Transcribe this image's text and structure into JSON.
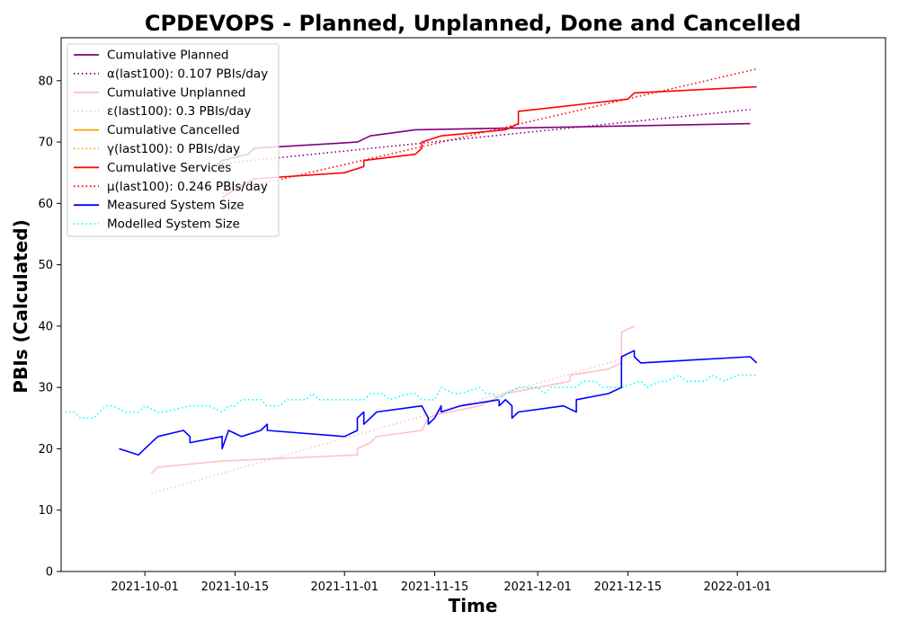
{
  "chart_data": {
    "type": "line",
    "title": "CPDEVOPS - Planned, Unplanned, Done  and Cancelled",
    "xlabel": "Time",
    "ylabel": "PBIs (Calculated)",
    "x_type": "date",
    "xlim": [
      "2021-09-18",
      "2022-01-24"
    ],
    "ylim": [
      0,
      87
    ],
    "x_ticks": [
      "2021-10-01",
      "2021-10-15",
      "2021-11-01",
      "2021-11-15",
      "2021-12-01",
      "2021-12-15",
      "2022-01-01"
    ],
    "y_ticks": [
      0,
      10,
      20,
      30,
      40,
      50,
      60,
      70,
      80
    ],
    "grid": false,
    "legend_position": "top-left",
    "series": [
      {
        "name": "Cumulative Planned",
        "color": "#800080",
        "style": "solid",
        "x": [
          "2021-10-12",
          "2021-10-13",
          "2021-10-15",
          "2021-10-17",
          "2021-10-18",
          "2021-11-03",
          "2021-11-04",
          "2021-11-05",
          "2021-11-12",
          "2021-11-28",
          "2022-01-03"
        ],
        "y": [
          66,
          67,
          67.5,
          68,
          69,
          70,
          70.5,
          71,
          72,
          72.3,
          73
        ]
      },
      {
        "name": "α(last100): 0.107 PBIs/day",
        "color": "#800080",
        "style": "dotted",
        "x": [
          "2021-10-13",
          "2022-01-03"
        ],
        "y": [
          66.5,
          75.3
        ]
      },
      {
        "name": "Cumulative Unplanned",
        "color": "#ffc0cb",
        "style": "solid",
        "x": [
          "2021-10-02",
          "2021-10-03",
          "2021-10-13",
          "2021-11-03",
          "2021-11-03",
          "2021-11-05",
          "2021-11-06",
          "2021-11-13",
          "2021-11-14",
          "2021-11-15",
          "2021-11-22",
          "2021-11-26",
          "2021-12-06",
          "2021-12-06",
          "2021-12-12",
          "2021-12-14",
          "2021-12-14",
          "2021-12-16"
        ],
        "y": [
          16,
          17,
          18,
          19,
          20,
          21,
          22,
          23,
          25,
          25.5,
          27,
          29,
          31,
          32,
          33,
          34,
          39,
          40
        ]
      },
      {
        "name": "ε(last100): 0.3 PBIs/day",
        "color": "#ffc0cb",
        "style": "dotted",
        "x": [
          "2021-10-02",
          "2021-12-16"
        ],
        "y": [
          12.7,
          35.2
        ]
      },
      {
        "name": "Cumulative Cancelled",
        "color": "#ffa500",
        "style": "solid",
        "x": [],
        "y": []
      },
      {
        "name": "γ(last100): 0 PBIs/day",
        "color": "#ffa500",
        "style": "dotted",
        "x": [],
        "y": []
      },
      {
        "name": "Cumulative Services",
        "color": "#ff0000",
        "style": "solid",
        "x": [
          "2021-10-13",
          "2021-10-18",
          "2021-11-01",
          "2021-11-04",
          "2021-11-04",
          "2021-11-12",
          "2021-11-13",
          "2021-11-13",
          "2021-11-16",
          "2021-11-26",
          "2021-11-27",
          "2021-11-28",
          "2021-11-28",
          "2021-12-15",
          "2021-12-16",
          "2022-01-04"
        ],
        "y": [
          61,
          64,
          65,
          66,
          67,
          68,
          69,
          70,
          71,
          72,
          72.5,
          73,
          75,
          77,
          78,
          79
        ]
      },
      {
        "name": "μ(last100): 0.246 PBIs/day",
        "color": "#ff0000",
        "style": "dotted",
        "x": [
          "2021-10-13",
          "2022-01-04"
        ],
        "y": [
          61.7,
          81.9
        ]
      },
      {
        "name": "Measured System Size",
        "color": "#0000ff",
        "style": "solid",
        "x": [
          "2021-09-27",
          "2021-09-30",
          "2021-10-01",
          "2021-10-03",
          "2021-10-07",
          "2021-10-08",
          "2021-10-08",
          "2021-10-13",
          "2021-10-13",
          "2021-10-14",
          "2021-10-14",
          "2021-10-15",
          "2021-10-16",
          "2021-10-19",
          "2021-10-20",
          "2021-10-20",
          "2021-11-01",
          "2021-11-03",
          "2021-11-03",
          "2021-11-04",
          "2021-11-04",
          "2021-11-05",
          "2021-11-06",
          "2021-11-13",
          "2021-11-14",
          "2021-11-14",
          "2021-11-15",
          "2021-11-16",
          "2021-11-16",
          "2021-11-19",
          "2021-11-25",
          "2021-11-25",
          "2021-11-26",
          "2021-11-27",
          "2021-11-27",
          "2021-11-28",
          "2021-12-05",
          "2021-12-07",
          "2021-12-07",
          "2021-12-12",
          "2021-12-14",
          "2021-12-14",
          "2021-12-16",
          "2021-12-16",
          "2021-12-17",
          "2022-01-03",
          "2022-01-04"
        ],
        "y": [
          20,
          19,
          20,
          22,
          23,
          22,
          21,
          22,
          20,
          23,
          23,
          22.5,
          22,
          23,
          24,
          23,
          22,
          23,
          25,
          26,
          24,
          25,
          26,
          27,
          25,
          24,
          25,
          27,
          26,
          27,
          28,
          27,
          28,
          27,
          25,
          26,
          27,
          26,
          28,
          29,
          30,
          35,
          36,
          35,
          34,
          35,
          34
        ]
      },
      {
        "name": "Modelled System Size",
        "color": "#00ffff",
        "style": "dotted",
        "x": [
          "2021-09-18",
          "2021-09-20",
          "2021-09-21",
          "2021-09-23",
          "2021-09-25",
          "2021-09-26",
          "2021-09-28",
          "2021-09-30",
          "2021-10-01",
          "2021-10-03",
          "2021-10-04",
          "2021-10-08",
          "2021-10-09",
          "2021-10-10",
          "2021-10-11",
          "2021-10-13",
          "2021-10-14",
          "2021-10-15",
          "2021-10-16",
          "2021-10-19",
          "2021-10-20",
          "2021-10-22",
          "2021-10-23",
          "2021-10-26",
          "2021-10-27",
          "2021-10-28",
          "2021-10-29",
          "2021-11-04",
          "2021-11-05",
          "2021-11-07",
          "2021-11-08",
          "2021-11-11",
          "2021-11-12",
          "2021-11-13",
          "2021-11-15",
          "2021-11-16",
          "2021-11-18",
          "2021-11-19",
          "2021-11-22",
          "2021-11-23",
          "2021-11-24",
          "2021-11-25",
          "2021-11-26",
          "2021-11-28",
          "2021-12-01",
          "2021-12-02",
          "2021-12-03",
          "2021-12-04",
          "2021-12-07",
          "2021-12-08",
          "2021-12-10",
          "2021-12-11",
          "2021-12-13",
          "2021-12-14",
          "2021-12-17",
          "2021-12-18",
          "2021-12-20",
          "2021-12-21",
          "2021-12-23",
          "2021-12-24",
          "2021-12-27",
          "2021-12-28",
          "2021-12-30",
          "2022-01-01",
          "2022-01-04"
        ],
        "y": [
          26,
          26,
          25,
          25,
          27,
          27,
          26,
          26,
          27,
          26,
          26,
          27,
          27,
          27,
          27,
          26,
          27,
          27,
          28,
          28,
          27,
          27,
          28,
          28,
          29,
          28,
          28,
          28,
          29,
          29,
          28,
          29,
          29,
          28,
          28,
          30,
          29,
          29,
          30,
          29,
          29,
          28,
          29,
          30,
          30,
          29,
          30,
          30,
          30,
          31,
          31,
          30,
          30,
          30,
          31,
          30,
          31,
          31,
          32,
          31,
          31,
          32,
          31,
          32,
          32
        ]
      }
    ]
  }
}
